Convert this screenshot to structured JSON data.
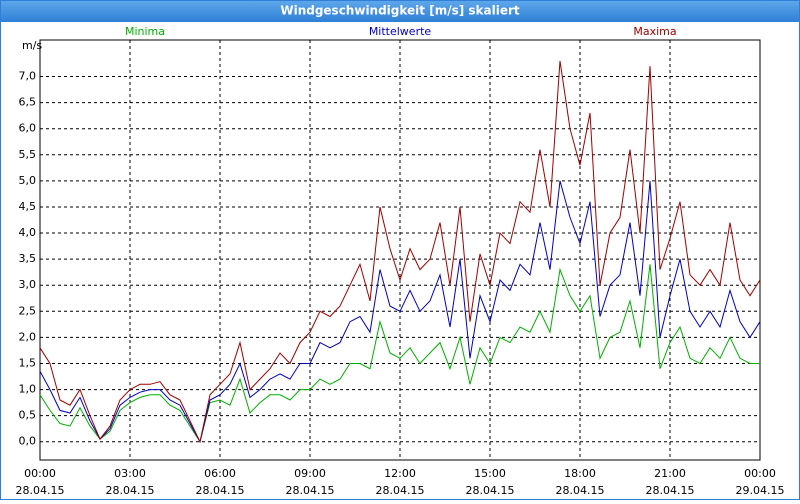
{
  "chart_data": {
    "type": "line",
    "title": "Windgeschwindigkeit [m/s] skaliert",
    "ylabel": "m/s",
    "x": [
      "28.04.15 00:00",
      "28.04.15 00:20",
      "28.04.15 00:40",
      "28.04.15 01:00",
      "28.04.15 01:20",
      "28.04.15 01:40",
      "28.04.15 02:00",
      "28.04.15 02:20",
      "28.04.15 02:40",
      "28.04.15 03:00",
      "28.04.15 03:20",
      "28.04.15 03:40",
      "28.04.15 04:00",
      "28.04.15 04:20",
      "28.04.15 04:40",
      "28.04.15 05:00",
      "28.04.15 05:20",
      "28.04.15 05:40",
      "28.04.15 06:00",
      "28.04.15 06:20",
      "28.04.15 06:40",
      "28.04.15 07:00",
      "28.04.15 07:20",
      "28.04.15 07:40",
      "28.04.15 08:00",
      "28.04.15 08:20",
      "28.04.15 08:40",
      "28.04.15 09:00",
      "28.04.15 09:20",
      "28.04.15 09:40",
      "28.04.15 10:00",
      "28.04.15 10:20",
      "28.04.15 10:40",
      "28.04.15 11:00",
      "28.04.15 11:20",
      "28.04.15 11:40",
      "28.04.15 12:00",
      "28.04.15 12:20",
      "28.04.15 12:40",
      "28.04.15 13:00",
      "28.04.15 13:20",
      "28.04.15 13:40",
      "28.04.15 14:00",
      "28.04.15 14:20",
      "28.04.15 14:40",
      "28.04.15 15:00",
      "28.04.15 15:20",
      "28.04.15 15:40",
      "28.04.15 16:00",
      "28.04.15 16:20",
      "28.04.15 16:40",
      "28.04.15 17:00",
      "28.04.15 17:20",
      "28.04.15 17:40",
      "28.04.15 18:00",
      "28.04.15 18:20",
      "28.04.15 18:40",
      "28.04.15 19:00",
      "28.04.15 19:20",
      "28.04.15 19:40",
      "28.04.15 20:00",
      "28.04.15 20:20",
      "28.04.15 20:40",
      "28.04.15 21:00",
      "28.04.15 21:20",
      "28.04.15 21:40",
      "28.04.15 22:00",
      "28.04.15 22:20",
      "28.04.15 22:40",
      "28.04.15 23:00",
      "28.04.15 23:20",
      "28.04.15 23:40",
      "29.04.15 00:00"
    ],
    "series": [
      {
        "name": "Minima",
        "color": "#00b000",
        "values": [
          0.9,
          0.6,
          0.35,
          0.3,
          0.65,
          0.3,
          0.05,
          0.2,
          0.6,
          0.75,
          0.85,
          0.9,
          0.9,
          0.7,
          0.6,
          0.3,
          0.0,
          0.75,
          0.8,
          0.7,
          1.2,
          0.55,
          0.75,
          0.9,
          0.9,
          0.8,
          1.0,
          1.0,
          1.2,
          1.1,
          1.2,
          1.5,
          1.5,
          1.4,
          2.3,
          1.7,
          1.6,
          1.8,
          1.5,
          1.7,
          1.9,
          1.4,
          2.0,
          1.1,
          1.8,
          1.5,
          2.0,
          1.9,
          2.2,
          2.1,
          2.5,
          2.1,
          3.3,
          2.8,
          2.5,
          2.8,
          1.6,
          2.0,
          2.1,
          2.7,
          1.8,
          3.4,
          1.4,
          1.9,
          2.2,
          1.6,
          1.5,
          1.8,
          1.6,
          2.0,
          1.6,
          1.5,
          1.5
        ]
      },
      {
        "name": "Mittelwerte",
        "color": "#0000c0",
        "values": [
          1.35,
          1.0,
          0.6,
          0.55,
          0.85,
          0.4,
          0.05,
          0.25,
          0.7,
          0.85,
          0.95,
          1.0,
          1.0,
          0.8,
          0.7,
          0.35,
          0.0,
          0.8,
          0.9,
          1.1,
          1.5,
          0.85,
          1.0,
          1.2,
          1.3,
          1.2,
          1.5,
          1.5,
          1.9,
          1.8,
          1.9,
          2.3,
          2.4,
          2.1,
          3.3,
          2.6,
          2.5,
          2.9,
          2.5,
          2.7,
          3.2,
          2.2,
          3.5,
          1.6,
          2.8,
          2.3,
          3.1,
          2.9,
          3.4,
          3.2,
          4.2,
          3.3,
          5.0,
          4.3,
          3.8,
          4.6,
          2.4,
          3.0,
          3.2,
          4.2,
          2.8,
          5.0,
          2.0,
          2.8,
          3.5,
          2.5,
          2.2,
          2.5,
          2.2,
          2.9,
          2.3,
          2.0,
          2.3
        ]
      },
      {
        "name": "Maxima",
        "color": "#a00000",
        "values": [
          1.8,
          1.5,
          0.8,
          0.7,
          1.0,
          0.5,
          0.05,
          0.3,
          0.8,
          1.0,
          1.1,
          1.1,
          1.15,
          0.9,
          0.8,
          0.4,
          0.0,
          0.9,
          1.1,
          1.3,
          1.9,
          1.0,
          1.2,
          1.4,
          1.7,
          1.5,
          1.9,
          2.1,
          2.5,
          2.4,
          2.6,
          3.0,
          3.4,
          2.7,
          4.5,
          3.7,
          3.1,
          3.7,
          3.3,
          3.5,
          4.2,
          3.0,
          4.5,
          2.3,
          3.6,
          3.0,
          4.0,
          3.8,
          4.6,
          4.4,
          5.6,
          4.5,
          7.3,
          6.0,
          5.3,
          6.3,
          3.0,
          4.0,
          4.3,
          5.6,
          4.0,
          7.2,
          3.3,
          3.9,
          4.6,
          3.2,
          3.0,
          3.3,
          3.0,
          4.2,
          3.1,
          2.8,
          3.1
        ]
      }
    ],
    "xlim": [
      "28.04.15 00:00",
      "29.04.15 00:00"
    ],
    "xticks": [
      {
        "value": "28.04.15 00:00",
        "label": [
          "00:00",
          "28.04.15"
        ]
      },
      {
        "value": "28.04.15 03:00",
        "label": [
          "03:00",
          "28.04.15"
        ]
      },
      {
        "value": "28.04.15 06:00",
        "label": [
          "06:00",
          "28.04.15"
        ]
      },
      {
        "value": "28.04.15 09:00",
        "label": [
          "09:00",
          "28.04.15"
        ]
      },
      {
        "value": "28.04.15 12:00",
        "label": [
          "12:00",
          "28.04.15"
        ]
      },
      {
        "value": "28.04.15 15:00",
        "label": [
          "15:00",
          "28.04.15"
        ]
      },
      {
        "value": "28.04.15 18:00",
        "label": [
          "18:00",
          "28.04.15"
        ]
      },
      {
        "value": "28.04.15 21:00",
        "label": [
          "21:00",
          "28.04.15"
        ]
      },
      {
        "value": "29.04.15 00:00",
        "label": [
          "00:00",
          "29.04.15"
        ]
      }
    ],
    "ylim": [
      -0.35,
      7.7
    ],
    "yticks": [
      {
        "value": 0,
        "label": "0,0"
      },
      {
        "value": 0.5,
        "label": "0,5"
      },
      {
        "value": 1,
        "label": "1,0"
      },
      {
        "value": 1.5,
        "label": "1,5"
      },
      {
        "value": 2,
        "label": "2,0"
      },
      {
        "value": 2.5,
        "label": "2,5"
      },
      {
        "value": 3,
        "label": "3,0"
      },
      {
        "value": 3.5,
        "label": "3,5"
      },
      {
        "value": 4,
        "label": "4,0"
      },
      {
        "value": 4.5,
        "label": "4,5"
      },
      {
        "value": 5,
        "label": "5,0"
      },
      {
        "value": 5.5,
        "label": "5,5"
      },
      {
        "value": 6,
        "label": "6,0"
      },
      {
        "value": 6.5,
        "label": "6,5"
      },
      {
        "value": 7,
        "label": "7,0"
      }
    ],
    "grid": true
  }
}
